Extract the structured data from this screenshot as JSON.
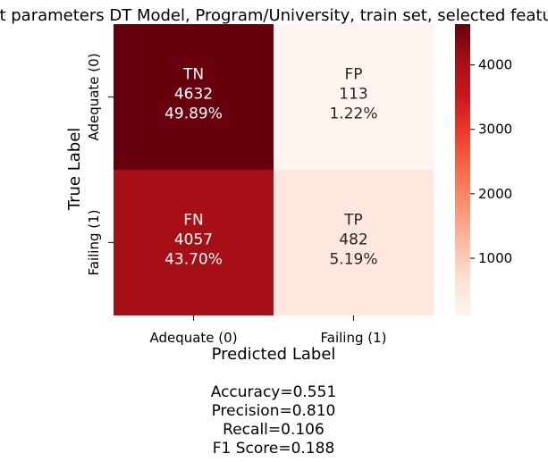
{
  "chart_data": {
    "type": "heatmap",
    "title": "Best parameters DT Model, Program/University, train set, selected features",
    "xlabel": "Predicted Label",
    "ylabel": "True Label",
    "x_categories": [
      "Adequate (0)",
      "Failing (1)"
    ],
    "y_categories": [
      "Adequate (0)",
      "Failing (1)"
    ],
    "cells": [
      [
        {
          "name": "TN",
          "count": "4632",
          "percent": "49.89%",
          "value": 4632
        },
        {
          "name": "FP",
          "count": "113",
          "percent": "1.22%",
          "value": 113
        }
      ],
      [
        {
          "name": "FN",
          "count": "4057",
          "percent": "43.70%",
          "value": 4057
        },
        {
          "name": "TP",
          "count": "482",
          "percent": "5.19%",
          "value": 482
        }
      ]
    ],
    "colorbar": {
      "min": 113,
      "max": 4632,
      "ticks": [
        1000,
        2000,
        3000,
        4000
      ],
      "colormap": [
        "#fff5f0",
        "#fee0d2",
        "#fcbba1",
        "#fc9272",
        "#fb6a4a",
        "#ef3b2c",
        "#cb181d",
        "#a50f15",
        "#67000d"
      ]
    },
    "metrics": [
      "Accuracy=0.551",
      "Precision=0.810",
      "Recall=0.106",
      "F1 Score=0.188"
    ]
  }
}
